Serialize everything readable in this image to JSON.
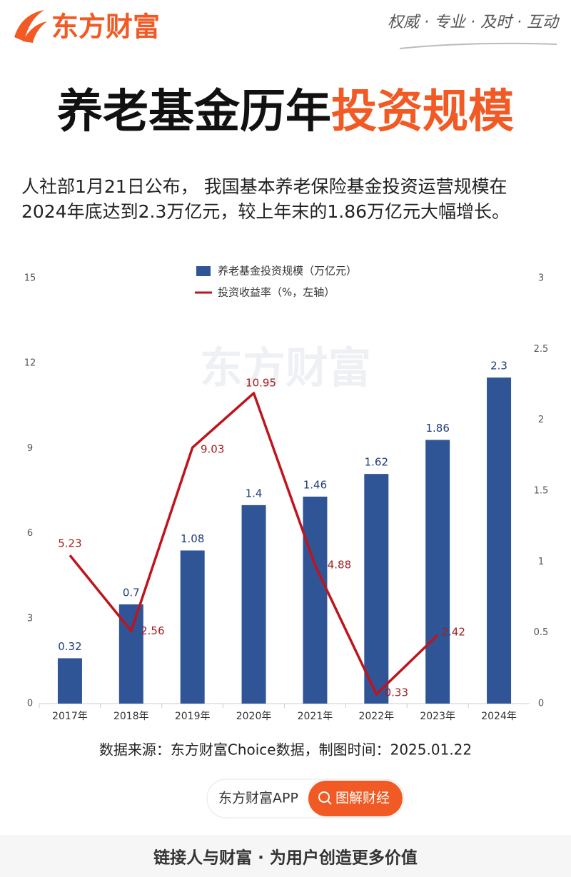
{
  "header": {
    "logo": "东方财富",
    "slogan": "权威 · 专业 · 及时 · 互动"
  },
  "title": {
    "main": "养老基金历年",
    "highlight": "投资规模"
  },
  "intro": [
    "人社部1月21日公布， 我国基本养老保险基金投资运营规模在",
    "2024年底达到2.3万亿元，较上年末的1.86万亿元大幅增长。"
  ],
  "chart_data": {
    "type": "bar-line",
    "watermark": "东方财富",
    "categories": [
      "2017年",
      "2018年",
      "2019年",
      "2020年",
      "2021年",
      "2022年",
      "2023年",
      "2024年"
    ],
    "series": [
      {
        "name": "养老基金投资规模（万亿元）",
        "type": "bar",
        "axis": "y2",
        "color": "#2f5597",
        "values": [
          0.32,
          0.7,
          1.08,
          1.4,
          1.46,
          1.62,
          1.86,
          2.3
        ]
      },
      {
        "name": "投资收益率（%，左轴）",
        "type": "line",
        "axis": "y",
        "color": "#c0141c",
        "values": [
          5.23,
          2.56,
          9.03,
          10.95,
          4.88,
          0.33,
          2.42,
          null
        ]
      }
    ],
    "ylim": [
      0,
      15
    ],
    "yticks": [
      0,
      3,
      6,
      9,
      12,
      15
    ],
    "y2lim": [
      0,
      3
    ],
    "y2ticks": [
      0,
      0.5,
      1,
      1.5,
      2,
      2.5,
      3
    ],
    "grid": false,
    "legend": "top"
  },
  "source": "数据来源：东方财富Choice数据，制图时间：2025.01.22",
  "app": {
    "name": "东方财富APP",
    "button": "图解财经"
  },
  "footer": "链接人与财富 · 为用户创造更多价值"
}
